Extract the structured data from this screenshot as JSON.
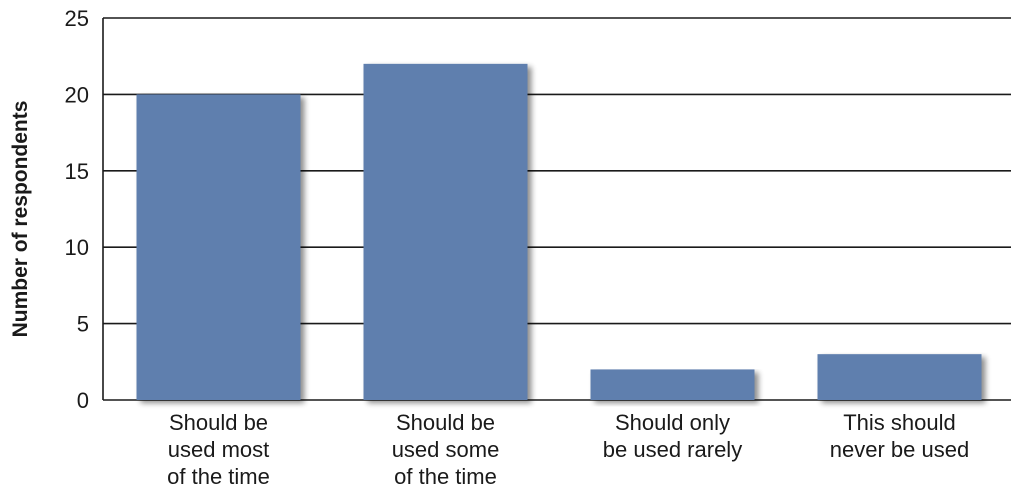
{
  "chart_data": {
    "type": "bar",
    "categories": [
      [
        "Should be",
        "used most",
        "of the time"
      ],
      [
        "Should be",
        "used some",
        "of the time"
      ],
      [
        "Should only",
        "be used rarely"
      ],
      [
        "This should",
        "never be used"
      ]
    ],
    "values": [
      20,
      22,
      2,
      3
    ],
    "xlabel": "",
    "ylabel": "Number of respondents",
    "ylim": [
      0,
      25
    ],
    "yticks": [
      0,
      5,
      10,
      15,
      20,
      25
    ],
    "grid": true,
    "bar_color": "#5f7fae"
  }
}
